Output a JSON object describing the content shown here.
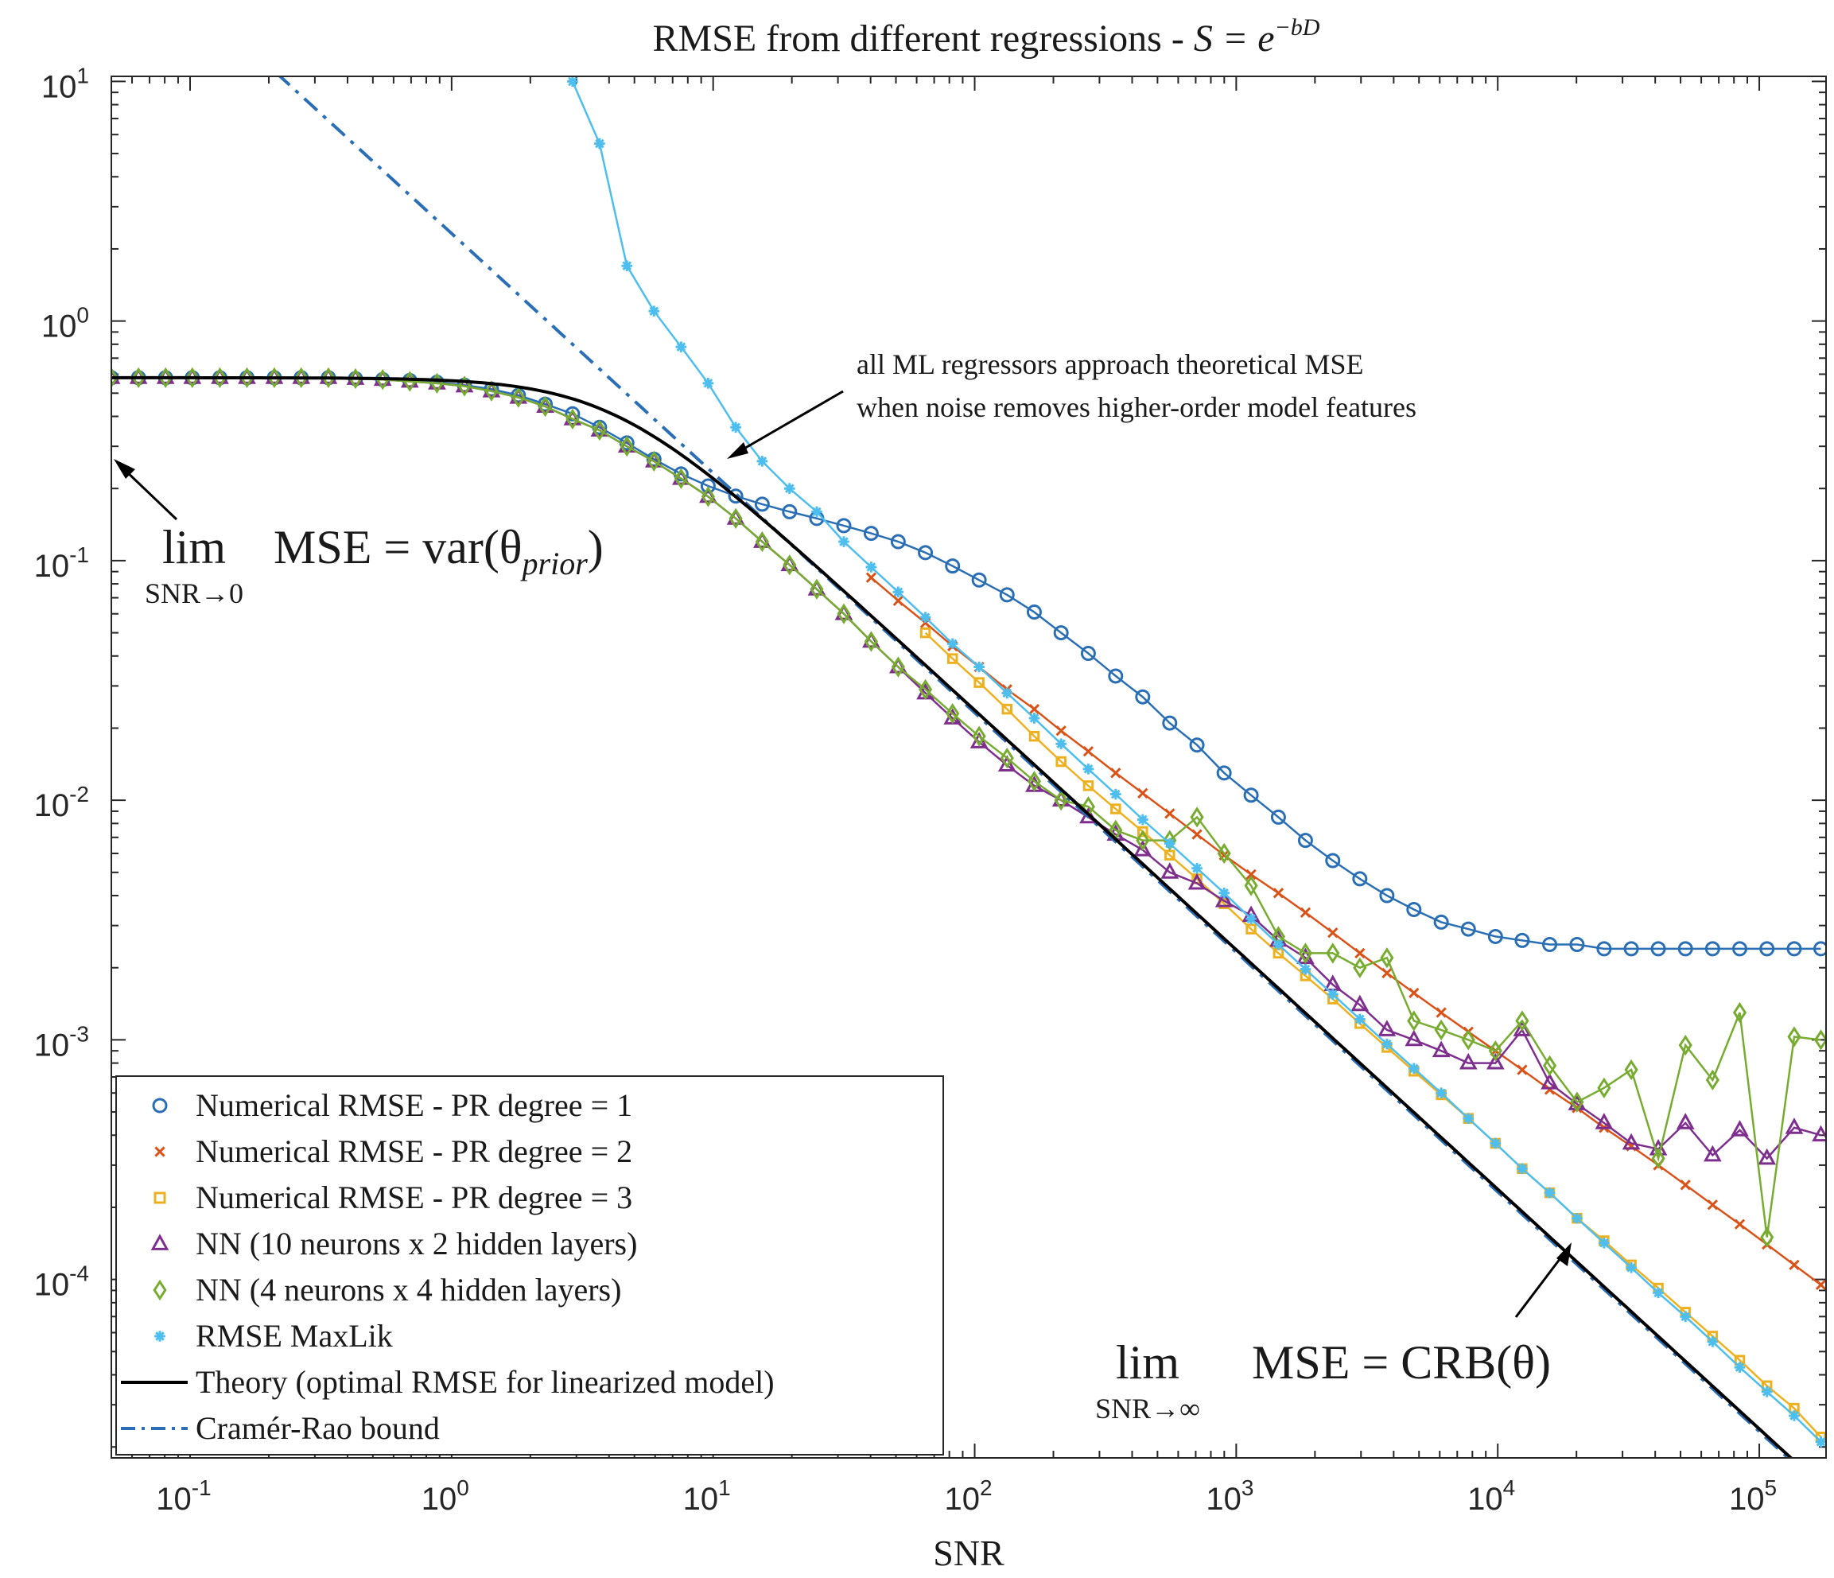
{
  "chart_data": {
    "type": "line",
    "title_prefix": "RMSE from different regressions - ",
    "title_formula": "S = e",
    "title_formula_exp": "−bD",
    "xlabel": "SNR",
    "ylabel": "",
    "xscale": "log",
    "yscale": "log",
    "xlim": [
      0.05,
      180000
    ],
    "ylim": [
      1.8e-05,
      10.5
    ],
    "x_ticks": [
      {
        "value": 0.1,
        "base": "10",
        "exp": "-1"
      },
      {
        "value": 1,
        "base": "10",
        "exp": "0"
      },
      {
        "value": 10,
        "base": "10",
        "exp": "1"
      },
      {
        "value": 100,
        "base": "10",
        "exp": "2"
      },
      {
        "value": 1000,
        "base": "10",
        "exp": "3"
      },
      {
        "value": 10000,
        "base": "10",
        "exp": "4"
      },
      {
        "value": 100000,
        "base": "10",
        "exp": "5"
      }
    ],
    "y_ticks": [
      {
        "value": 0.0001,
        "base": "10",
        "exp": "-4"
      },
      {
        "value": 0.001,
        "base": "10",
        "exp": "-3"
      },
      {
        "value": 0.01,
        "base": "10",
        "exp": "-2"
      },
      {
        "value": 0.1,
        "base": "10",
        "exp": "-1"
      },
      {
        "value": 1,
        "base": "10",
        "exp": "0"
      },
      {
        "value": 10,
        "base": "10",
        "exp": "1"
      }
    ],
    "legend_position": "bottom-left",
    "annotations": {
      "ml_note_line1": "all ML regressors approach theoretical MSE",
      "ml_note_line2": "when noise removes higher-order model features",
      "low_snr_lim": "lim",
      "low_snr_sub": "SNR→0",
      "low_snr_text": "MSE = var(θ",
      "low_snr_subscript": "prior",
      "low_snr_close": ")",
      "high_snr_lim": "lim",
      "high_snr_sub": "SNR→∞",
      "high_snr_text": "MSE = CRB(θ)"
    },
    "theory": {
      "name": "Theory (optimal RMSE for linearized model)",
      "color": "#000000",
      "plateau": 0.58,
      "knee": 4.1
    },
    "crb": {
      "name": "Cramér-Rao bound",
      "color": "#2a6fb5",
      "coefficient": 2.32
    },
    "series": [
      {
        "name": "Numerical RMSE - PR degree = 1",
        "color": "#2a6fb5",
        "marker": "circle",
        "x": [
          0.05,
          0.0635,
          0.0806,
          0.102,
          0.13,
          0.165,
          0.21,
          0.266,
          0.338,
          0.429,
          0.545,
          0.692,
          0.879,
          1.12,
          1.42,
          1.8,
          2.28,
          2.9,
          3.68,
          4.68,
          5.94,
          7.54,
          9.57,
          12.2,
          15.4,
          19.6,
          24.9,
          31.6,
          40.2,
          51,
          64.8,
          82.3,
          104,
          133,
          169,
          214,
          272,
          346,
          439,
          557,
          708,
          899,
          1140,
          1450,
          1840,
          2340,
          2970,
          3770,
          4780,
          6080,
          7720,
          9800,
          12400,
          15800,
          20100,
          25500,
          32400,
          41100,
          52200,
          66300,
          84200,
          107000,
          136000,
          172000
        ],
        "y": [
          0.58,
          0.58,
          0.58,
          0.58,
          0.58,
          0.58,
          0.58,
          0.58,
          0.58,
          0.575,
          0.57,
          0.565,
          0.555,
          0.54,
          0.52,
          0.49,
          0.45,
          0.41,
          0.36,
          0.31,
          0.265,
          0.23,
          0.205,
          0.186,
          0.172,
          0.16,
          0.15,
          0.14,
          0.13,
          0.12,
          0.108,
          0.095,
          0.083,
          0.072,
          0.061,
          0.05,
          0.041,
          0.033,
          0.027,
          0.021,
          0.017,
          0.013,
          0.0105,
          0.0085,
          0.0068,
          0.0056,
          0.0047,
          0.004,
          0.0035,
          0.0031,
          0.0029,
          0.0027,
          0.0026,
          0.0025,
          0.0025,
          0.0024,
          0.0024,
          0.0024,
          0.0024,
          0.0024,
          0.0024,
          0.0024,
          0.0024,
          0.0024
        ]
      },
      {
        "name": "Numerical RMSE - PR degree = 2",
        "color": "#d95319",
        "marker": "cross",
        "x": [
          40.2,
          51,
          64.8,
          82.3,
          104,
          133,
          169,
          214,
          272,
          346,
          439,
          557,
          708,
          899,
          1140,
          1450,
          1840,
          2340,
          2970,
          3770,
          4780,
          6080,
          7720,
          9800,
          12400,
          15800,
          20100,
          25500,
          32400,
          41100,
          52200,
          66300,
          84200,
          107000,
          136000,
          172000
        ],
        "y": [
          0.085,
          0.068,
          0.055,
          0.044,
          0.036,
          0.029,
          0.024,
          0.0195,
          0.016,
          0.013,
          0.0107,
          0.0088,
          0.0072,
          0.0059,
          0.0049,
          0.0041,
          0.0034,
          0.0028,
          0.0023,
          0.0019,
          0.00157,
          0.0013,
          0.00108,
          0.0009,
          0.00075,
          0.00062,
          0.00052,
          0.00043,
          0.00036,
          0.0003,
          0.000248,
          0.000205,
          0.00017,
          0.00014,
          0.000115,
          9.5e-05
        ]
      },
      {
        "name": "Numerical RMSE - PR degree = 3",
        "color": "#edb120",
        "marker": "square",
        "x": [
          64.8,
          82.3,
          104,
          133,
          169,
          214,
          272,
          346,
          439,
          557,
          708,
          899,
          1140,
          1450,
          1840,
          2340,
          2970,
          3770,
          4780,
          6080,
          7720,
          9800,
          12400,
          15800,
          20100,
          25500,
          32400,
          41100,
          52200,
          66300,
          84200,
          107000,
          136000,
          172000
        ],
        "y": [
          0.05,
          0.039,
          0.031,
          0.024,
          0.0185,
          0.0145,
          0.0115,
          0.0092,
          0.0074,
          0.0059,
          0.0047,
          0.0037,
          0.0029,
          0.0023,
          0.00185,
          0.00148,
          0.00117,
          0.00093,
          0.00074,
          0.00059,
          0.00047,
          0.00037,
          0.00029,
          0.00023,
          0.00018,
          0.000145,
          0.000115,
          9.2e-05,
          7.3e-05,
          5.8e-05,
          4.6e-05,
          3.6e-05,
          2.9e-05,
          2.2e-05
        ]
      },
      {
        "name": "NN (10 neurons x 2 hidden layers)",
        "color": "#7e2f8e",
        "marker": "triangle",
        "x": [
          0.05,
          0.0635,
          0.0806,
          0.102,
          0.13,
          0.165,
          0.21,
          0.266,
          0.338,
          0.429,
          0.545,
          0.692,
          0.879,
          1.12,
          1.42,
          1.8,
          2.28,
          2.9,
          3.68,
          4.68,
          5.94,
          7.54,
          9.57,
          12.2,
          15.4,
          19.6,
          24.9,
          31.6,
          40.2,
          51,
          64.8,
          82.3,
          104,
          133,
          169,
          214,
          272,
          346,
          439,
          557,
          708,
          899,
          1140,
          1450,
          1840,
          2340,
          2970,
          3770,
          4780,
          6080,
          7720,
          9800,
          12400,
          15800,
          20100,
          25500,
          32400,
          41100,
          52200,
          66300,
          84200,
          107000,
          136000,
          172000
        ],
        "y": [
          0.58,
          0.58,
          0.58,
          0.58,
          0.58,
          0.58,
          0.58,
          0.58,
          0.58,
          0.575,
          0.57,
          0.56,
          0.55,
          0.535,
          0.51,
          0.48,
          0.44,
          0.39,
          0.35,
          0.3,
          0.26,
          0.22,
          0.185,
          0.15,
          0.12,
          0.096,
          0.076,
          0.06,
          0.046,
          0.036,
          0.028,
          0.022,
          0.0175,
          0.014,
          0.0115,
          0.01,
          0.0085,
          0.0072,
          0.0062,
          0.005,
          0.0045,
          0.0038,
          0.0033,
          0.0026,
          0.0022,
          0.0017,
          0.0014,
          0.0011,
          0.001,
          0.0009,
          0.0008,
          0.0008,
          0.0011,
          0.00066,
          0.00054,
          0.00045,
          0.00037,
          0.00035,
          0.00045,
          0.00033,
          0.00042,
          0.00032,
          0.00043,
          0.0004
        ]
      },
      {
        "name": "NN (4 neurons x 4 hidden layers)",
        "color": "#77ac30",
        "marker": "diamond",
        "x": [
          0.05,
          0.0635,
          0.0806,
          0.102,
          0.13,
          0.165,
          0.21,
          0.266,
          0.338,
          0.429,
          0.545,
          0.692,
          0.879,
          1.12,
          1.42,
          1.8,
          2.28,
          2.9,
          3.68,
          4.68,
          5.94,
          7.54,
          9.57,
          12.2,
          15.4,
          19.6,
          24.9,
          31.6,
          40.2,
          51,
          64.8,
          82.3,
          104,
          133,
          169,
          214,
          272,
          346,
          439,
          557,
          708,
          899,
          1140,
          1450,
          1840,
          2340,
          2970,
          3770,
          4780,
          6080,
          7720,
          9800,
          12400,
          15800,
          20100,
          25500,
          32400,
          41100,
          52200,
          66300,
          84200,
          107000,
          136000,
          172000
        ],
        "y": [
          0.58,
          0.58,
          0.58,
          0.58,
          0.58,
          0.58,
          0.58,
          0.58,
          0.58,
          0.575,
          0.57,
          0.56,
          0.55,
          0.535,
          0.51,
          0.48,
          0.44,
          0.39,
          0.35,
          0.3,
          0.26,
          0.22,
          0.185,
          0.15,
          0.12,
          0.096,
          0.076,
          0.06,
          0.046,
          0.036,
          0.029,
          0.023,
          0.0185,
          0.015,
          0.012,
          0.01,
          0.0094,
          0.0075,
          0.0068,
          0.0068,
          0.0085,
          0.006,
          0.0044,
          0.0027,
          0.0023,
          0.0023,
          0.002,
          0.0022,
          0.0012,
          0.0011,
          0.001,
          0.0009,
          0.0012,
          0.00078,
          0.00055,
          0.00063,
          0.00075,
          0.00032,
          0.00095,
          0.00068,
          0.0013,
          0.00015,
          0.00103,
          0.001
        ]
      },
      {
        "name": "RMSE MaxLik",
        "color": "#4dbeee",
        "marker": "asterisk",
        "x": [
          2.9,
          3.68,
          4.68,
          5.94,
          7.54,
          9.57,
          12.2,
          15.4,
          19.6,
          24.9,
          31.6,
          40.2,
          51,
          64.8,
          82.3,
          104,
          133,
          169,
          214,
          272,
          346,
          439,
          557,
          708,
          899,
          1140,
          1450,
          1840,
          2340,
          2970,
          3770,
          4780,
          6080,
          7720,
          9800,
          12400,
          15800,
          20100,
          25500,
          32400,
          41100,
          52200,
          66300,
          84200,
          107000,
          136000,
          172000
        ],
        "y": [
          10,
          5.5,
          1.7,
          1.1,
          0.78,
          0.55,
          0.36,
          0.26,
          0.2,
          0.16,
          0.12,
          0.094,
          0.074,
          0.058,
          0.045,
          0.036,
          0.028,
          0.022,
          0.0172,
          0.0135,
          0.0106,
          0.0083,
          0.0066,
          0.0052,
          0.0041,
          0.0032,
          0.0025,
          0.00197,
          0.00155,
          0.00122,
          0.00096,
          0.00076,
          0.0006,
          0.00047,
          0.00037,
          0.00029,
          0.00023,
          0.00018,
          0.000142,
          0.000112,
          8.8e-05,
          7e-05,
          5.5e-05,
          4.3e-05,
          3.4e-05,
          2.7e-05,
          2.1e-05
        ]
      }
    ]
  }
}
